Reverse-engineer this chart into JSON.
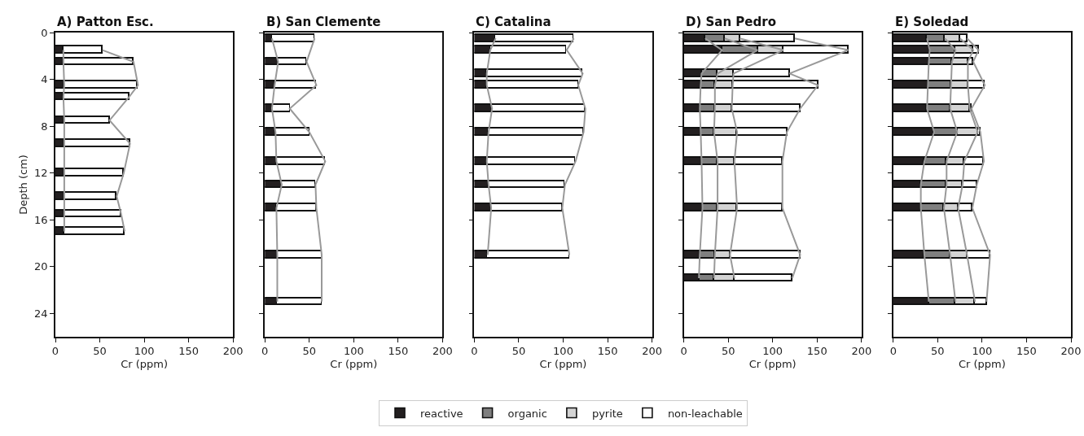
{
  "chart_data": [
    {
      "type": "bar",
      "orientation": "horizontal",
      "stacked": true,
      "title": "A) Patton Esc.",
      "xlabel": "Cr (ppm)",
      "ylabel": "Depth (cm)",
      "grid": false,
      "x": [
        1.5,
        2.5,
        4.5,
        5.5,
        7.5,
        9.5,
        12,
        14,
        15.5,
        17
      ],
      "series": [
        {
          "color": "#231f20",
          "values": [
            9,
            9,
            10,
            9,
            10,
            10,
            10,
            10,
            10,
            10
          ]
        },
        {
          "color": "#ffffff",
          "values": [
            44,
            79,
            83,
            74,
            51,
            74,
            67,
            59,
            64,
            68
          ]
        }
      ],
      "xlim": [
        0,
        200
      ],
      "xticks": [
        0,
        50,
        100,
        150,
        200
      ],
      "ylim": [
        26,
        0
      ],
      "yticks": [
        0,
        4,
        8,
        12,
        16,
        20,
        24
      ]
    },
    {
      "type": "bar",
      "orientation": "horizontal",
      "stacked": true,
      "title": "B) San Clemente",
      "xlabel": "Cr (ppm)",
      "grid": false,
      "tick_labels": "x",
      "x": [
        0.5,
        2.5,
        4.5,
        6.5,
        8.5,
        11,
        13,
        15,
        19,
        23
      ],
      "series": [
        {
          "color": "#231f20",
          "values": [
            8,
            15,
            11,
            8,
            12,
            13,
            19,
            13,
            14,
            14
          ]
        },
        {
          "color": "#ffffff",
          "values": [
            48,
            32,
            47,
            20,
            38,
            55,
            38,
            45,
            50,
            50
          ]
        }
      ],
      "xlim": [
        0,
        200
      ],
      "xticks": [
        0,
        50,
        100,
        150,
        200
      ],
      "ylim": [
        26,
        0
      ],
      "yticks": [
        0,
        4,
        8,
        12,
        16,
        20,
        24
      ]
    },
    {
      "type": "bar",
      "orientation": "horizontal",
      "stacked": true,
      "title": "C) Catalina",
      "xlabel": "Cr (ppm)",
      "grid": false,
      "tick_labels": "x",
      "x": [
        0.5,
        1.5,
        3.5,
        4.5,
        6.5,
        8.5,
        11,
        13,
        15,
        19
      ],
      "series": [
        {
          "color": "#231f20",
          "values": [
            24,
            18,
            14,
            14,
            20,
            16,
            14,
            16,
            19,
            15
          ]
        },
        {
          "color": "#ffffff",
          "values": [
            88,
            86,
            108,
            103,
            105,
            107,
            100,
            86,
            80,
            92
          ]
        }
      ],
      "xlim": [
        0,
        200
      ],
      "xticks": [
        0,
        50,
        100,
        150,
        200
      ],
      "ylim": [
        26,
        0
      ],
      "yticks": [
        0,
        4,
        8,
        12,
        16,
        20,
        24
      ]
    },
    {
      "type": "bar",
      "orientation": "horizontal",
      "stacked": true,
      "title": "D) San Pedro",
      "xlabel": "Cr (ppm)",
      "grid": false,
      "tick_labels": "x",
      "x": [
        0.5,
        1.5,
        3.5,
        4.5,
        6.5,
        8.5,
        11,
        15,
        19,
        21
      ],
      "series": [
        {
          "color": "#231f20",
          "values": [
            24,
            43,
            20,
            19,
            18,
            19,
            20,
            21,
            18,
            17
          ]
        },
        {
          "color": "#7f7f7f",
          "values": [
            22,
            40,
            18,
            16,
            17,
            15,
            18,
            17,
            17,
            17
          ]
        },
        {
          "color": "#d3d3d3",
          "values": [
            17,
            29,
            18,
            20,
            19,
            26,
            19,
            22,
            17,
            23
          ]
        },
        {
          "color": "#ffffff",
          "values": [
            62,
            73,
            63,
            96,
            77,
            56,
            54,
            51,
            79,
            65
          ]
        }
      ],
      "xlim": [
        0,
        200
      ],
      "xticks": [
        0,
        50,
        100,
        150,
        200
      ],
      "ylim": [
        26,
        0
      ],
      "yticks": [
        0,
        4,
        8,
        12,
        16,
        20,
        24
      ]
    },
    {
      "type": "bar",
      "orientation": "horizontal",
      "stacked": true,
      "title": "E) Soledad",
      "xlabel": "Cr (ppm)",
      "legend": "bottom",
      "grid": false,
      "tick_labels": "x",
      "x": [
        0.5,
        1.5,
        2.5,
        4.5,
        6.5,
        8.5,
        11,
        13,
        15,
        19,
        23
      ],
      "series": [
        {
          "name": "reactive",
          "color": "#231f20",
          "values": [
            38,
            41,
            40,
            39,
            38,
            46,
            35,
            31,
            31,
            35,
            40
          ]
        },
        {
          "name": "organic",
          "color": "#7f7f7f",
          "values": [
            20,
            29,
            26,
            26,
            26,
            26,
            25,
            29,
            26,
            29,
            30
          ]
        },
        {
          "name": "pyrite",
          "color": "#d3d3d3",
          "values": [
            17,
            20,
            18,
            19,
            22,
            23,
            20,
            18,
            16,
            19,
            22
          ]
        },
        {
          "name": "non-leachable",
          "color": "#ffffff",
          "values": [
            8,
            6,
            6,
            19,
            2,
            3,
            22,
            16,
            16,
            26,
            13
          ]
        }
      ],
      "xlim": [
        0,
        200
      ],
      "xticks": [
        0,
        50,
        100,
        150,
        200
      ],
      "ylim": [
        26,
        0
      ],
      "yticks": [
        0,
        4,
        8,
        12,
        16,
        20,
        24
      ]
    }
  ]
}
